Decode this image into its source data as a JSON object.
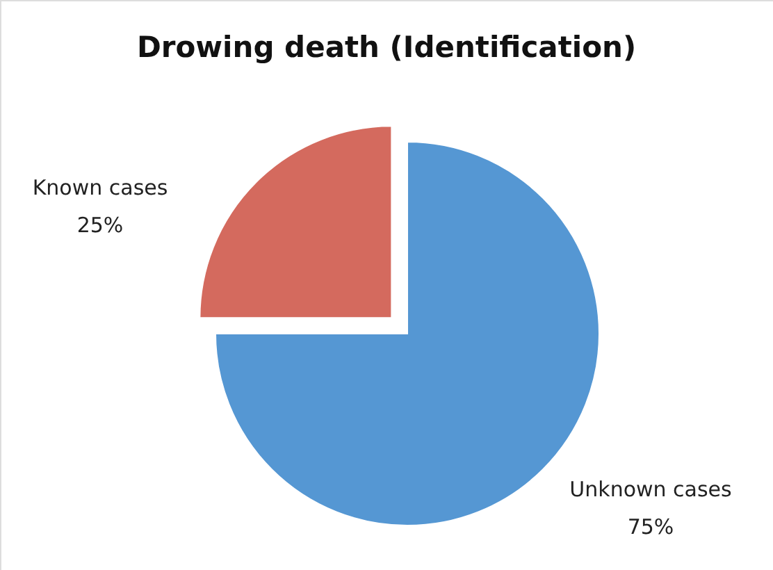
{
  "chart_data": {
    "type": "pie",
    "title": "Drowing death (Identification)",
    "categories": [
      "Unknown cases",
      "Known cases"
    ],
    "values": [
      75,
      25
    ],
    "colors": [
      "#5597d3",
      "#d46a5e"
    ],
    "value_labels": [
      "75%",
      "25%"
    ]
  }
}
